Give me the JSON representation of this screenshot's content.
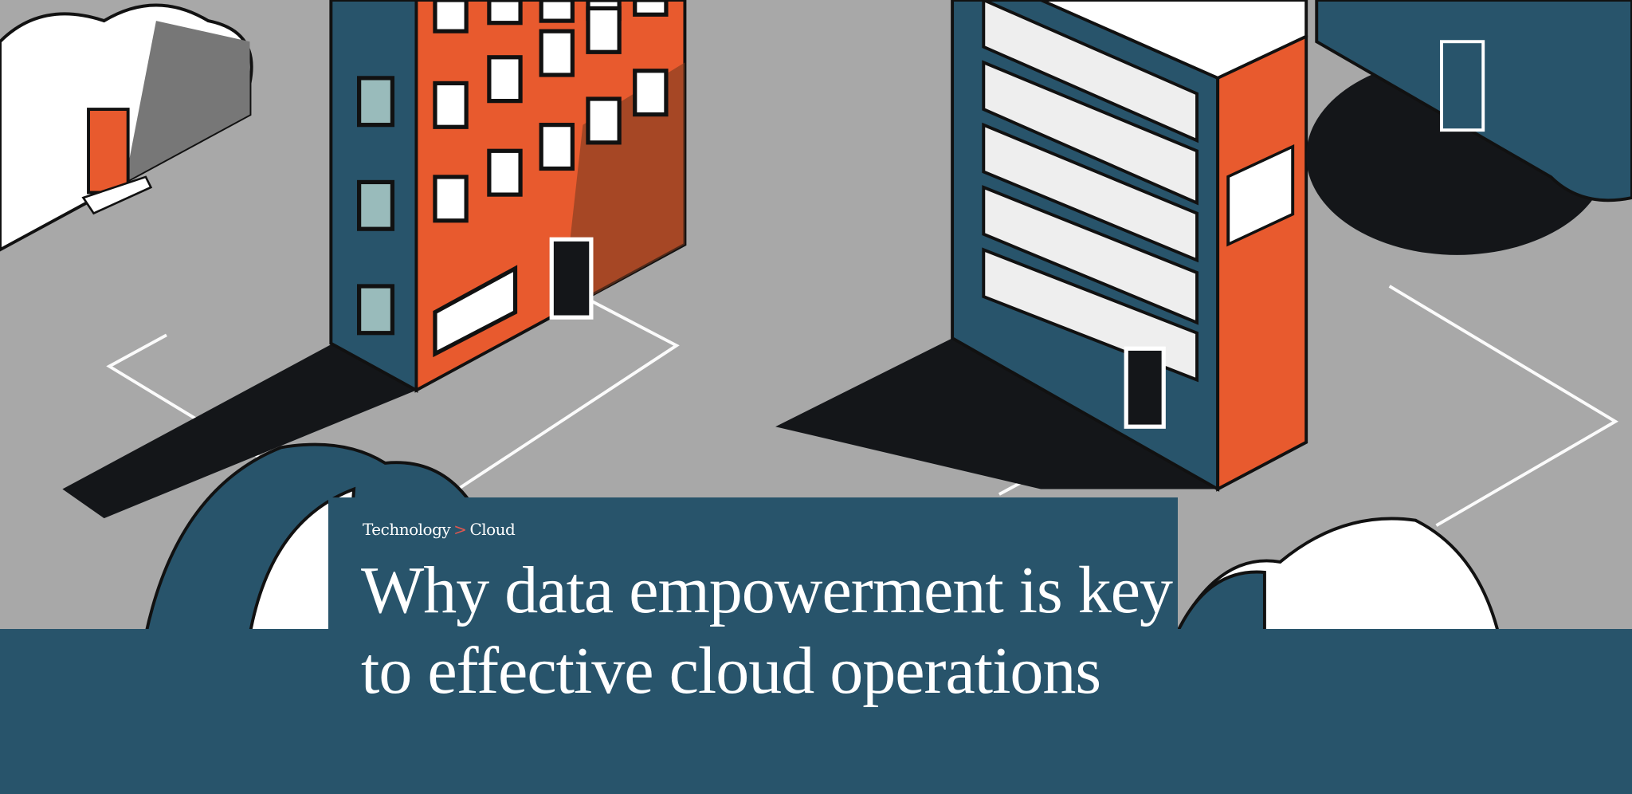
{
  "breadcrumb": {
    "items": [
      "Technology",
      "Cloud"
    ],
    "separator": ">"
  },
  "headline": "Why data empowerment is key to effective cloud operations",
  "colors": {
    "background": "#a8a8a8",
    "panel": "#28546b",
    "accent_orange": "#e85a2e",
    "teal": "#28546b",
    "shadow": "#141619",
    "separator": "#e0574f"
  },
  "illustration": {
    "icons": [
      "cloud-with-door-icon",
      "office-building-icon",
      "server-rack-icon",
      "network-line-icon"
    ]
  }
}
